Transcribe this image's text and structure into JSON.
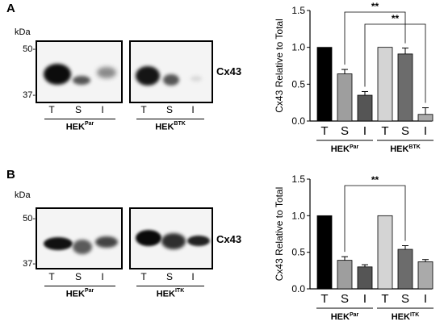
{
  "figure": {
    "panel_a": {
      "label": "A",
      "blot": {
        "unit": "kDa",
        "markers": [
          "50-",
          "37-"
        ],
        "protein": "Cx43",
        "lanes": [
          "T",
          "S",
          "I"
        ],
        "groups": [
          {
            "base": "HEK",
            "sup": "Par"
          },
          {
            "base": "HEK",
            "sup": "BTK"
          }
        ]
      }
    },
    "panel_b": {
      "label": "B",
      "blot": {
        "unit": "kDa",
        "markers": [
          "50-",
          "37-"
        ],
        "protein": "Cx43",
        "lanes": [
          "T",
          "S",
          "I"
        ],
        "groups": [
          {
            "base": "HEK",
            "sup": "Par"
          },
          {
            "base": "HEK",
            "sup": "ITK"
          }
        ]
      }
    }
  },
  "colors": {
    "T_parental": "#000000",
    "S_parental": "#9e9e9e",
    "I_parental": "#555555",
    "T_knockdown": "#d4d4d4",
    "S_knockdown": "#6c6c6c",
    "I_knockdown": "#aaaaaa",
    "band": "#111111"
  },
  "chart_data": [
    {
      "type": "bar",
      "panel": "A",
      "ylabel": "Cx43 Relative to Total",
      "ylim": [
        0,
        1.5
      ],
      "yticks": [
        "0.0",
        "0.5",
        "1.0",
        "1.5"
      ],
      "categories": [
        "T",
        "S",
        "I",
        "T",
        "S",
        "I"
      ],
      "values": [
        1.0,
        0.64,
        0.35,
        1.0,
        0.91,
        0.09
      ],
      "errors": [
        0,
        0.06,
        0.05,
        0,
        0.08,
        0.09
      ],
      "groups": [
        {
          "base": "HEK",
          "sup": "Par"
        },
        {
          "base": "HEK",
          "sup": "BTK"
        }
      ],
      "significance": [
        {
          "from": 1,
          "to": 4,
          "label": "**"
        },
        {
          "from": 2,
          "to": 5,
          "label": "**"
        }
      ]
    },
    {
      "type": "bar",
      "panel": "B",
      "ylabel": "Cx43 Relative to Total",
      "ylim": [
        0,
        1.5
      ],
      "yticks": [
        "0.0",
        "0.5",
        "1.0",
        "1.5"
      ],
      "categories": [
        "T",
        "S",
        "I",
        "T",
        "S",
        "I"
      ],
      "values": [
        1.0,
        0.39,
        0.3,
        1.0,
        0.54,
        0.37
      ],
      "errors": [
        0,
        0.05,
        0.03,
        0,
        0.05,
        0.03
      ],
      "groups": [
        {
          "base": "HEK",
          "sup": "Par"
        },
        {
          "base": "HEK",
          "sup": "ITK"
        }
      ],
      "significance": [
        {
          "from": 1,
          "to": 4,
          "label": "**"
        }
      ]
    }
  ]
}
